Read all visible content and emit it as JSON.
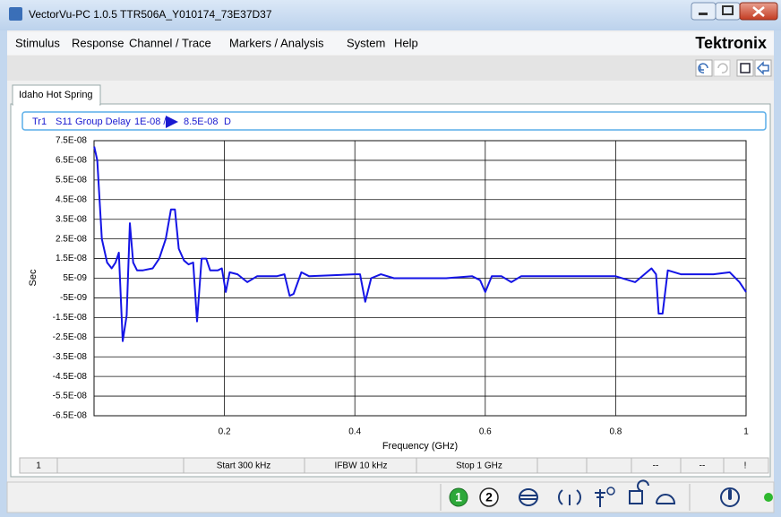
{
  "window": {
    "title": "VectorVu-PC 1.0.5 TTR506A_Y010174_73E37D37"
  },
  "menu": {
    "items": [
      "Stimulus",
      "Response",
      "Channel / Trace",
      "Markers / Analysis",
      "System",
      "Help"
    ],
    "logo": "Tektronix"
  },
  "tab": {
    "label": "Idaho Hot Spring"
  },
  "trace_header": {
    "trace": "Tr1",
    "parameter": "S11",
    "format": "Group Delay",
    "scale": "1E-08 /",
    "reference": "8.5E-08",
    "mode": "D"
  },
  "chart_data": {
    "type": "line",
    "xlabel": "Frequency (GHz)",
    "ylabel": "Sec",
    "color": "#1414e6",
    "grid": true,
    "xlim": [
      0,
      1
    ],
    "xticks": [
      0.2,
      0.4,
      0.6,
      0.8,
      1
    ],
    "ylim": [
      -6.5e-08,
      7.5e-08
    ],
    "yticks": [
      {
        "value": 7.5e-08,
        "label": "7.5E-08"
      },
      {
        "value": 6.5e-08,
        "label": "6.5E-08"
      },
      {
        "value": 5.5e-08,
        "label": "5.5E-08"
      },
      {
        "value": 4.5e-08,
        "label": "4.5E-08"
      },
      {
        "value": 3.5e-08,
        "label": "3.5E-08"
      },
      {
        "value": 2.5e-08,
        "label": "2.5E-08"
      },
      {
        "value": 1.5e-08,
        "label": "1.5E-08"
      },
      {
        "value": 5e-09,
        "label": "5E-09"
      },
      {
        "value": -5e-09,
        "label": "-5E-09"
      },
      {
        "value": -1.5e-08,
        "label": "-1.5E-08"
      },
      {
        "value": -2.5e-08,
        "label": "-2.5E-08"
      },
      {
        "value": -3.5e-08,
        "label": "-3.5E-08"
      },
      {
        "value": -4.5e-08,
        "label": "-4.5E-08"
      },
      {
        "value": -5.5e-08,
        "label": "-5.5E-08"
      },
      {
        "value": -6.5e-08,
        "label": "-6.5E-08"
      }
    ],
    "x": [
      0.0003,
      0.005,
      0.012,
      0.02,
      0.027,
      0.033,
      0.038,
      0.044,
      0.05,
      0.055,
      0.06,
      0.066,
      0.075,
      0.09,
      0.1,
      0.11,
      0.118,
      0.124,
      0.13,
      0.138,
      0.145,
      0.152,
      0.158,
      0.165,
      0.172,
      0.178,
      0.19,
      0.196,
      0.202,
      0.208,
      0.22,
      0.235,
      0.25,
      0.28,
      0.292,
      0.3,
      0.306,
      0.318,
      0.33,
      0.4,
      0.408,
      0.416,
      0.425,
      0.44,
      0.46,
      0.54,
      0.58,
      0.592,
      0.6,
      0.61,
      0.625,
      0.64,
      0.655,
      0.75,
      0.8,
      0.83,
      0.855,
      0.862,
      0.866,
      0.872,
      0.88,
      0.9,
      0.95,
      0.975,
      0.99,
      1
    ],
    "values": [
      7.2e-08,
      6.5e-08,
      2.5e-08,
      1.3e-08,
      1e-08,
      1.3e-08,
      1.8e-08,
      -2.7e-08,
      -1.4e-08,
      3.3e-08,
      1.3e-08,
      9e-09,
      9e-09,
      1e-08,
      1.5e-08,
      2.5e-08,
      4e-08,
      4e-08,
      2e-08,
      1.4e-08,
      1.2e-08,
      1.3e-08,
      -1.7e-08,
      1.5e-08,
      1.5e-08,
      9e-09,
      9e-09,
      1e-08,
      -2e-09,
      8e-09,
      7e-09,
      3e-09,
      6e-09,
      6e-09,
      7e-09,
      -4e-09,
      -3e-09,
      8e-09,
      6e-09,
      7e-09,
      7e-09,
      -7e-09,
      5e-09,
      7e-09,
      5e-09,
      5e-09,
      6e-09,
      4e-09,
      -2e-09,
      6e-09,
      6e-09,
      3e-09,
      6e-09,
      6e-09,
      6e-09,
      3e-09,
      1e-08,
      7e-09,
      -1.3e-08,
      -1.3e-08,
      9e-09,
      7e-09,
      7e-09,
      8e-09,
      3e-09,
      -2e-09
    ]
  },
  "status_bar": {
    "cells": [
      "1",
      "Start 300 kHz",
      "IFBW 10 kHz",
      "Stop 1 GHz",
      "--",
      "--",
      "!"
    ]
  },
  "bottom_bar": {
    "channels": [
      "1",
      "2"
    ]
  }
}
